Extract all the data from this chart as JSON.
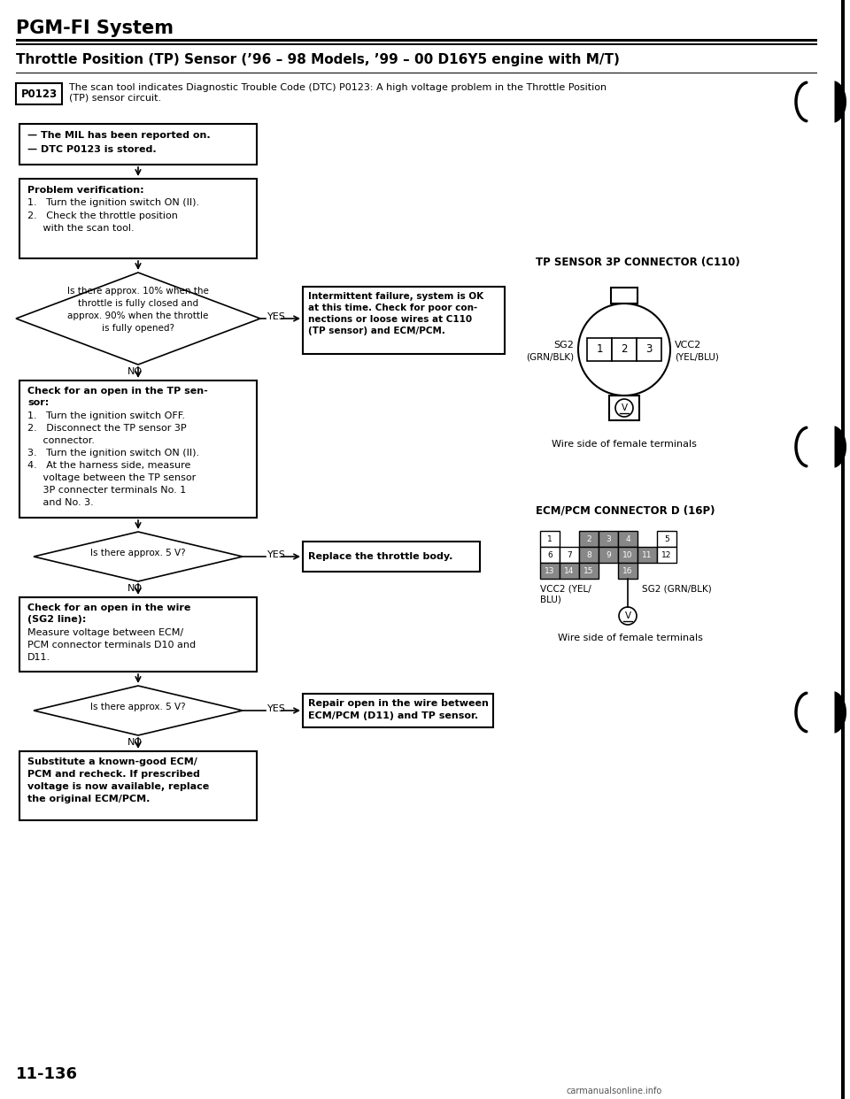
{
  "page_title": "PGM-FI System",
  "section_title": "Throttle Position (TP) Sensor (’96 – 98 Models, ’99 – 00 D16Y5 engine with M/T)",
  "dtc_code": "P0123",
  "dtc_description": "The scan tool indicates Diagnostic Trouble Code (DTC) P0123: A high voltage problem in the Throttle Position\n(TP) sensor circuit.",
  "page_number": "11-136",
  "watermark": "carmanualsonline.info",
  "bg_color": "#ffffff",
  "box1_line1": "— The MIL has been reported on.",
  "box1_line2": "— DTC P0123 is stored.",
  "box2_title": "Problem verification:",
  "box2_l1": "1.   Turn the ignition switch ON (II).",
  "box2_l2": "2.   Check the throttle position",
  "box2_l3": "     with the scan tool.",
  "d1_l1": "Is there approx. 10% when the",
  "d1_l2": "throttle is fully closed and",
  "d1_l3": "approx. 90% when the throttle",
  "d1_l4": "is fully opened?",
  "box3_l1": "Intermittent failure, system is OK",
  "box3_l2": "at this time. Check for poor con-",
  "box3_l3": "nections or loose wires at C110",
  "box3_l4": "(TP sensor) and ECM/PCM.",
  "box4_title1": "Check for an open in the TP sen-",
  "box4_title2": "sor:",
  "box4_l1": "1.   Turn the ignition switch OFF.",
  "box4_l2": "2.   Disconnect the TP sensor 3P",
  "box4_l3": "     connector.",
  "box4_l4": "3.   Turn the ignition switch ON (II).",
  "box4_l5": "4.   At the harness side, measure",
  "box4_l6": "     voltage between the TP sensor",
  "box4_l7": "     3P connecter terminals No. 1",
  "box4_l8": "     and No. 3.",
  "d2_text": "Is there approx. 5 V?",
  "box5_text": "Replace the throttle body.",
  "box6_title1": "Check for an open in the wire",
  "box6_title2": "(SG2 line):",
  "box6_l1": "Measure voltage between ECM/",
  "box6_l2": "PCM connector terminals D10 and",
  "box6_l3": "D11.",
  "d3_text": "Is there approx. 5 V?",
  "box7_l1": "Repair open in the wire between",
  "box7_l2": "ECM/PCM (D11) and TP sensor.",
  "box8_l1": "Substitute a known-good ECM/",
  "box8_l2": "PCM and recheck. If prescribed",
  "box8_l3": "voltage is now available, replace",
  "box8_l4": "the original ECM/PCM.",
  "tp_title": "TP SENSOR 3P CONNECTOR (C110)",
  "tp_wire": "Wire side of female terminals",
  "ecm_title": "ECM/PCM CONNECTOR D (16P)",
  "ecm_wire": "Wire side of female terminals",
  "yes_label": "YES",
  "no_label": "NO"
}
